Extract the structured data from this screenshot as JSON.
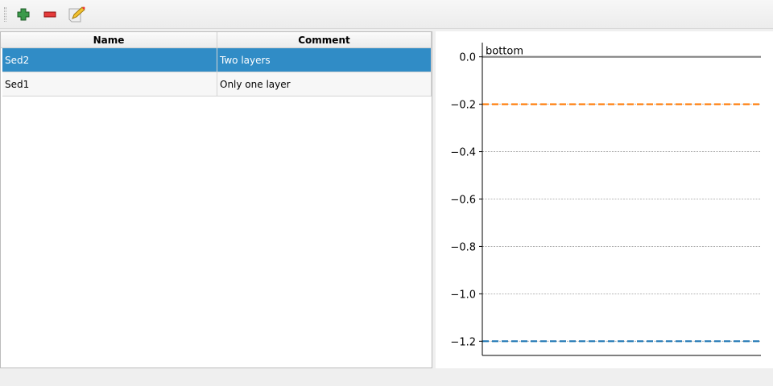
{
  "toolbar": {
    "buttons": [
      {
        "name": "add",
        "icon": "plus-icon"
      },
      {
        "name": "remove",
        "icon": "minus-icon"
      },
      {
        "name": "edit",
        "icon": "edit-icon"
      }
    ]
  },
  "table": {
    "headers": [
      "Name",
      "Comment"
    ],
    "rows": [
      {
        "name": "Sed2",
        "comment": "Two layers",
        "selected": true
      },
      {
        "name": "Sed1",
        "comment": "Only one layer",
        "selected": false
      }
    ]
  },
  "chart_data": {
    "type": "line",
    "ylim": [
      -1.26,
      0.06
    ],
    "yticks": [
      0.0,
      -0.2,
      -0.4,
      -0.6,
      -0.8,
      -1.0,
      -1.2
    ],
    "ytick_labels": [
      "0.0",
      "−0.2",
      "−0.4",
      "−0.6",
      "−0.8",
      "−1.0",
      "−1.2"
    ],
    "grid": true,
    "annotations": [
      {
        "text": "bottom",
        "y": 0.0
      }
    ],
    "hlines": [
      {
        "y": 0.0,
        "style": "solid",
        "color": "#808080"
      },
      {
        "y": -0.2,
        "style": "dashed",
        "color": "#ff7f0e"
      },
      {
        "y": -1.2,
        "style": "dashed",
        "color": "#1f77b4"
      }
    ]
  }
}
